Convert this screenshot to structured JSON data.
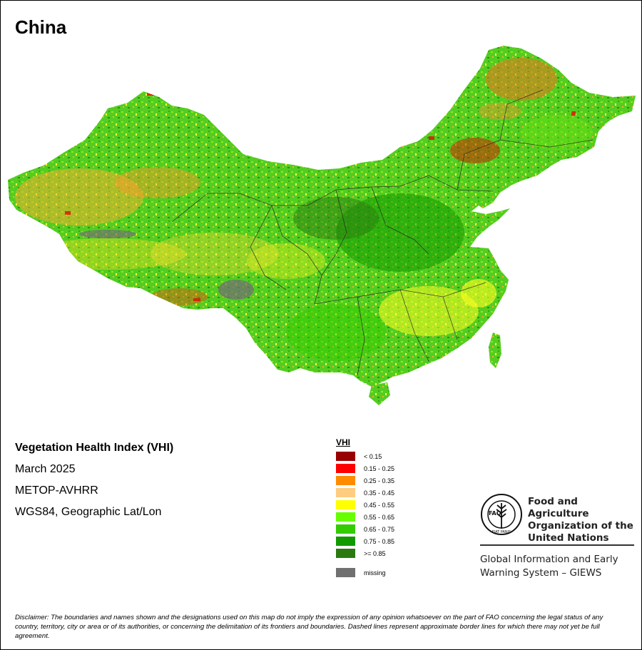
{
  "map": {
    "title": "China"
  },
  "info": {
    "index_name": "Vegetation Health Index (VHI)",
    "period": "March 2025",
    "sensor": "METOP-AVHRR",
    "projection": "WGS84, Geographic Lat/Lon"
  },
  "legend": {
    "title": "VHI",
    "items": [
      {
        "label": "< 0.15",
        "color": "#990000"
      },
      {
        "label": "0.15 - 0.25",
        "color": "#ff0000"
      },
      {
        "label": "0.25 - 0.35",
        "color": "#ff8c00"
      },
      {
        "label": "0.35 - 0.45",
        "color": "#ffcc80"
      },
      {
        "label": "0.45 - 0.55",
        "color": "#ffff00"
      },
      {
        "label": "0.55 - 0.65",
        "color": "#66ff00"
      },
      {
        "label": "0.65 - 0.75",
        "color": "#33cc00"
      },
      {
        "label": "0.75 - 0.85",
        "color": "#119900"
      },
      {
        "label": ">= 0.85",
        "color": "#2a7a10"
      }
    ],
    "missing": {
      "label": "missing",
      "color": "#707070"
    }
  },
  "fao": {
    "name": "Food and Agriculture Organization of the United Nations",
    "logo_text": "FAO",
    "logo_motto": "FIAT PANIS",
    "system": "Global Information and Early Warning System – GIEWS"
  },
  "disclaimer": "Disclaimer: The boundaries and names shown and the designations used on this map do not imply the expression of any opinion whatsoever on the part of FAO concerning the legal status of any country, territory, city or area or of its authorities, or concerning the delimitation of its frontiers and boundaries. Dashed lines represent approximate border lines for which there may not yet be full agreement."
}
